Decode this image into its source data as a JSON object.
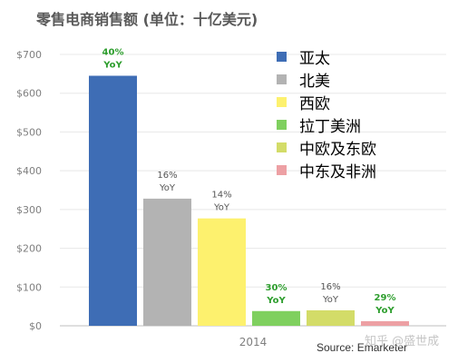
{
  "colors": {
    "asia_pacific": "#3e6db5",
    "north_america": "#b3b3b3",
    "western_europe": "#fdf16e",
    "latin_america": "#7fd05f",
    "central_eastern_europe": "#d3dc68",
    "middle_east_africa": "#eda0a4",
    "growth_green": "#2e9e2e",
    "growth_gray": "#555555",
    "axis_text": "#7f7f7f",
    "grid": "#e8e8e8"
  },
  "source": "Source: Emarketer",
  "watermark": "知乎 @盛世成",
  "chart_data": {
    "type": "bar",
    "title": "零售电商销售额 (单位：十亿美元)",
    "xlabel": "",
    "ylabel": "",
    "categories": [
      "2014"
    ],
    "ylim": [
      0,
      700
    ],
    "yticks": [
      0,
      100,
      200,
      300,
      400,
      500,
      600,
      700
    ],
    "ytick_labels": [
      "$0",
      "$100",
      "$200",
      "$300",
      "$400",
      "$500",
      "$600",
      "$700"
    ],
    "grid": true,
    "legend_position": "top-right",
    "series": [
      {
        "name": "亚太",
        "values": [
          645
        ],
        "growth_label": [
          "40%",
          "YoY"
        ],
        "color_key": "asia_pacific",
        "label_style": "green"
      },
      {
        "name": "北美",
        "values": [
          328
        ],
        "growth_label": [
          "16%",
          "YoY"
        ],
        "color_key": "north_america",
        "label_style": "gray"
      },
      {
        "name": "西欧",
        "values": [
          277
        ],
        "growth_label": [
          "14%",
          "YoY"
        ],
        "color_key": "western_europe",
        "label_style": "gray"
      },
      {
        "name": "拉丁美洲",
        "values": [
          38
        ],
        "growth_label": [
          "30%",
          "YoY"
        ],
        "color_key": "latin_america",
        "label_style": "green"
      },
      {
        "name": "中欧及东欧",
        "values": [
          40
        ],
        "growth_label": [
          "16%",
          "YoY"
        ],
        "color_key": "central_eastern_europe",
        "label_style": "gray"
      },
      {
        "name": "中东及非洲",
        "values": [
          12
        ],
        "growth_label": [
          "29%",
          "YoY"
        ],
        "color_key": "middle_east_africa",
        "label_style": "green"
      }
    ]
  }
}
